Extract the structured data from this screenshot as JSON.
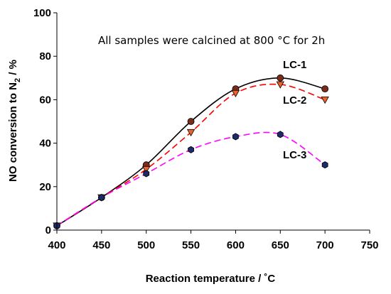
{
  "chart_data": {
    "type": "line",
    "xlabel": "Reaction temperature / ˚C",
    "ylabel_parts": {
      "before": "NO conversion to N",
      "sub": "2",
      "after": " / %"
    },
    "annotation": "All samples were calcined at 800 °C for 2h",
    "xlim": [
      400,
      750
    ],
    "ylim": [
      0,
      100
    ],
    "x_ticks": [
      400,
      450,
      500,
      550,
      600,
      650,
      700,
      750
    ],
    "y_ticks": [
      0,
      20,
      40,
      60,
      80,
      100
    ],
    "grid": false,
    "series": [
      {
        "name": "LC-1",
        "x": [
          400,
          450,
          500,
          550,
          600,
          650,
          700
        ],
        "values": [
          2,
          15,
          30,
          50,
          65,
          70,
          65
        ],
        "line_color": "#000000",
        "line_style": "solid",
        "marker": "circle",
        "marker_color": "#7b2a1c"
      },
      {
        "name": "LC-2",
        "x": [
          400,
          450,
          500,
          550,
          600,
          650,
          700
        ],
        "values": [
          2,
          15,
          28,
          45,
          63,
          67,
          60
        ],
        "line_color": "#ff0000",
        "line_style": "dashed",
        "marker": "triangle-down",
        "marker_color": "#e8642a"
      },
      {
        "name": "LC-3",
        "x": [
          400,
          450,
          500,
          550,
          600,
          650,
          700
        ],
        "values": [
          2,
          15,
          26,
          37,
          43,
          44,
          30
        ],
        "line_color": "#ff00ff",
        "line_style": "dashed",
        "marker": "hexagon",
        "marker_color": "#1f2a6b"
      }
    ]
  }
}
